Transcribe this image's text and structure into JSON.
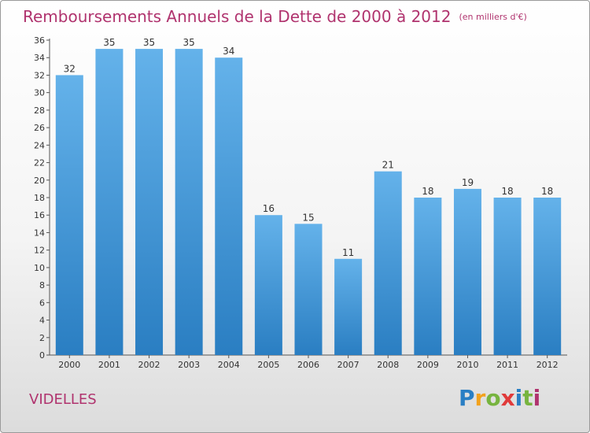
{
  "title": "Remboursements Annuels de la Dette de 2000 à 2012",
  "title_unit": "(en milliers d'€)",
  "commune": "VIDELLES",
  "logo": {
    "letters": [
      "P",
      "r",
      "o",
      "x",
      "i",
      "t",
      "i"
    ],
    "colors": [
      "#2a7fc4",
      "#f2a21d",
      "#77b43f",
      "#e03a3a",
      "#2a7fc4",
      "#77b43f",
      "#b0336e"
    ]
  },
  "colors": {
    "bar_top": "#64b2ea",
    "bar_bottom": "#2a7ec2",
    "title": "#b0336e"
  },
  "chart_data": {
    "type": "bar",
    "title": "Remboursements Annuels de la Dette de 2000 à 2012",
    "unit": "(en milliers d'€)",
    "categories": [
      "2000",
      "2001",
      "2002",
      "2003",
      "2004",
      "2005",
      "2006",
      "2007",
      "2008",
      "2009",
      "2010",
      "2011",
      "2012"
    ],
    "values": [
      32,
      35,
      35,
      35,
      34,
      16,
      15,
      11,
      21,
      18,
      19,
      18,
      18
    ],
    "yticks": [
      0,
      2,
      4,
      6,
      8,
      10,
      12,
      14,
      16,
      18,
      20,
      22,
      24,
      26,
      28,
      30,
      32,
      34,
      36
    ],
    "ylim": [
      0,
      36
    ],
    "grid": false,
    "legend": "none"
  }
}
